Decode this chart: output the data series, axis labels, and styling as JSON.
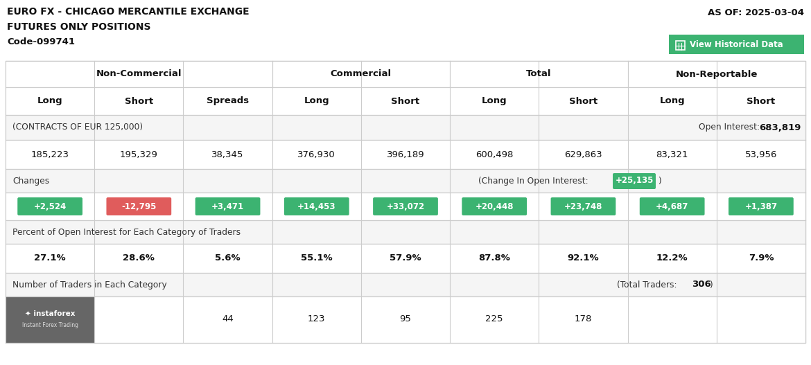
{
  "title_line1": "EURO FX - CHICAGO MERCANTILE EXCHANGE",
  "title_line2": "FUTURES ONLY POSITIONS",
  "title_line3": "Code-099741",
  "as_of": "AS OF: 2025-03-04",
  "btn_text": "View Historical Data",
  "col_groups": [
    {
      "label": "Non-Commercial",
      "span": 3
    },
    {
      "label": "Commercial",
      "span": 2
    },
    {
      "label": "Total",
      "span": 2
    },
    {
      "label": "Non-Reportable",
      "span": 2
    }
  ],
  "col_headers": [
    "Long",
    "Short",
    "Spreads",
    "Long",
    "Short",
    "Long",
    "Short",
    "Long",
    "Short"
  ],
  "contracts_label": "(CONTRACTS OF EUR 125,000)",
  "open_interest_label": "Open Interest:",
  "open_interest_value": "683,819",
  "main_values": [
    "185,223",
    "195,329",
    "38,345",
    "376,930",
    "396,189",
    "600,498",
    "629,863",
    "83,321",
    "53,956"
  ],
  "changes_label": "Changes",
  "change_oi_label": "(Change In Open Interest:",
  "change_oi_value": "+25,135",
  "change_values": [
    "+2,524",
    "-12,795",
    "+3,471",
    "+14,453",
    "+33,072",
    "+20,448",
    "+23,748",
    "+4,687",
    "+1,387"
  ],
  "change_colors": [
    "#3cb371",
    "#e05c5c",
    "#3cb371",
    "#3cb371",
    "#3cb371",
    "#3cb371",
    "#3cb371",
    "#3cb371",
    "#3cb371"
  ],
  "pct_label": "Percent of Open Interest for Each Category of Traders",
  "pct_values": [
    "27.1%",
    "28.6%",
    "5.6%",
    "55.1%",
    "57.9%",
    "87.8%",
    "92.1%",
    "12.2%",
    "7.9%"
  ],
  "traders_label": "Number of Traders in Each Category",
  "total_traders_label": "(Total Traders:",
  "total_traders_value": "306",
  "traders_values": [
    "",
    "44",
    "123",
    "95",
    "225",
    "178",
    "",
    ""
  ],
  "bg_color": "#ffffff",
  "border_color": "#cccccc",
  "green_color": "#3cb371",
  "text_color": "#333333",
  "gray_bg": "#f5f5f5",
  "logo_bg": "#666666"
}
